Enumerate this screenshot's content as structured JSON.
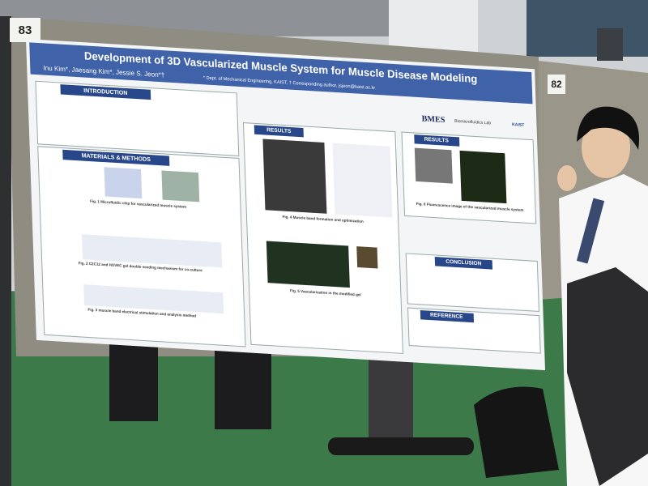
{
  "board_numbers": [
    "83",
    "82"
  ],
  "poster": {
    "title": "Development of 3D Vascularized Muscle System for Muscle Disease Modeling",
    "authors": "Inu Kim*, Jaesang Kim*, Jessie S. Jeon*†",
    "affiliation": "* Dept. of Mechanical Engineering, KAIST, † Corresponding author, jsjeon@kaist.ac.kr",
    "logos": [
      "BMES",
      "Biomicrofluidics Lab",
      "KAIST"
    ],
    "sections": [
      "INTRODUCTION",
      "MATERIALS & METHODS",
      "RESULTS",
      "RESULTS",
      "CONCLUSION",
      "REFERENCE"
    ],
    "captions": [
      "Fig. 1 Microfluidic chip for vascularized muscle system",
      "Fig. 2 C2C12 and HUVEC gel double seeding mechanism for co-culture",
      "Fig. 3 muscle band electrical stimulation and analysis method",
      "Fig. 4 Muscle band formation and optimization",
      "Fig. 5 Vascularization in the modified gel",
      "Fig. 6 Fluorescence image of the vascularized muscle system"
    ]
  }
}
